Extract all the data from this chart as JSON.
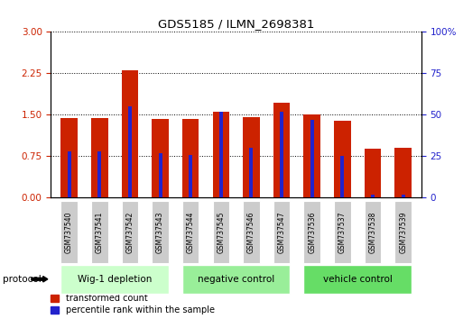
{
  "title": "GDS5185 / ILMN_2698381",
  "samples": [
    "GSM737540",
    "GSM737541",
    "GSM737542",
    "GSM737543",
    "GSM737544",
    "GSM737545",
    "GSM737546",
    "GSM737547",
    "GSM737536",
    "GSM737537",
    "GSM737538",
    "GSM737539"
  ],
  "transformed_count": [
    1.45,
    1.45,
    2.3,
    1.42,
    1.43,
    1.55,
    1.46,
    1.72,
    1.5,
    1.4,
    0.88,
    0.9
  ],
  "percentile_rank": [
    28,
    28,
    55,
    27,
    26,
    52,
    30,
    52,
    47,
    25,
    2,
    2
  ],
  "groups": [
    {
      "label": "Wig-1 depletion",
      "start": 0,
      "end": 3,
      "color": "#ccffcc"
    },
    {
      "label": "negative control",
      "start": 4,
      "end": 7,
      "color": "#99ee99"
    },
    {
      "label": "vehicle control",
      "start": 8,
      "end": 11,
      "color": "#66dd66"
    }
  ],
  "ylim_left": [
    0,
    3
  ],
  "ylim_right": [
    0,
    100
  ],
  "yticks_left": [
    0,
    0.75,
    1.5,
    2.25,
    3
  ],
  "yticks_right": [
    0,
    25,
    50,
    75,
    100
  ],
  "bar_color": "#cc2200",
  "percentile_color": "#2222cc",
  "bar_width": 0.55,
  "blue_bar_width": 0.12,
  "legend_items": [
    {
      "label": "transformed count",
      "color": "#cc2200"
    },
    {
      "label": "percentile rank within the sample",
      "color": "#2222cc"
    }
  ],
  "protocol_label": "protocol",
  "left_axis_color": "#cc2200",
  "right_axis_color": "#2222cc"
}
